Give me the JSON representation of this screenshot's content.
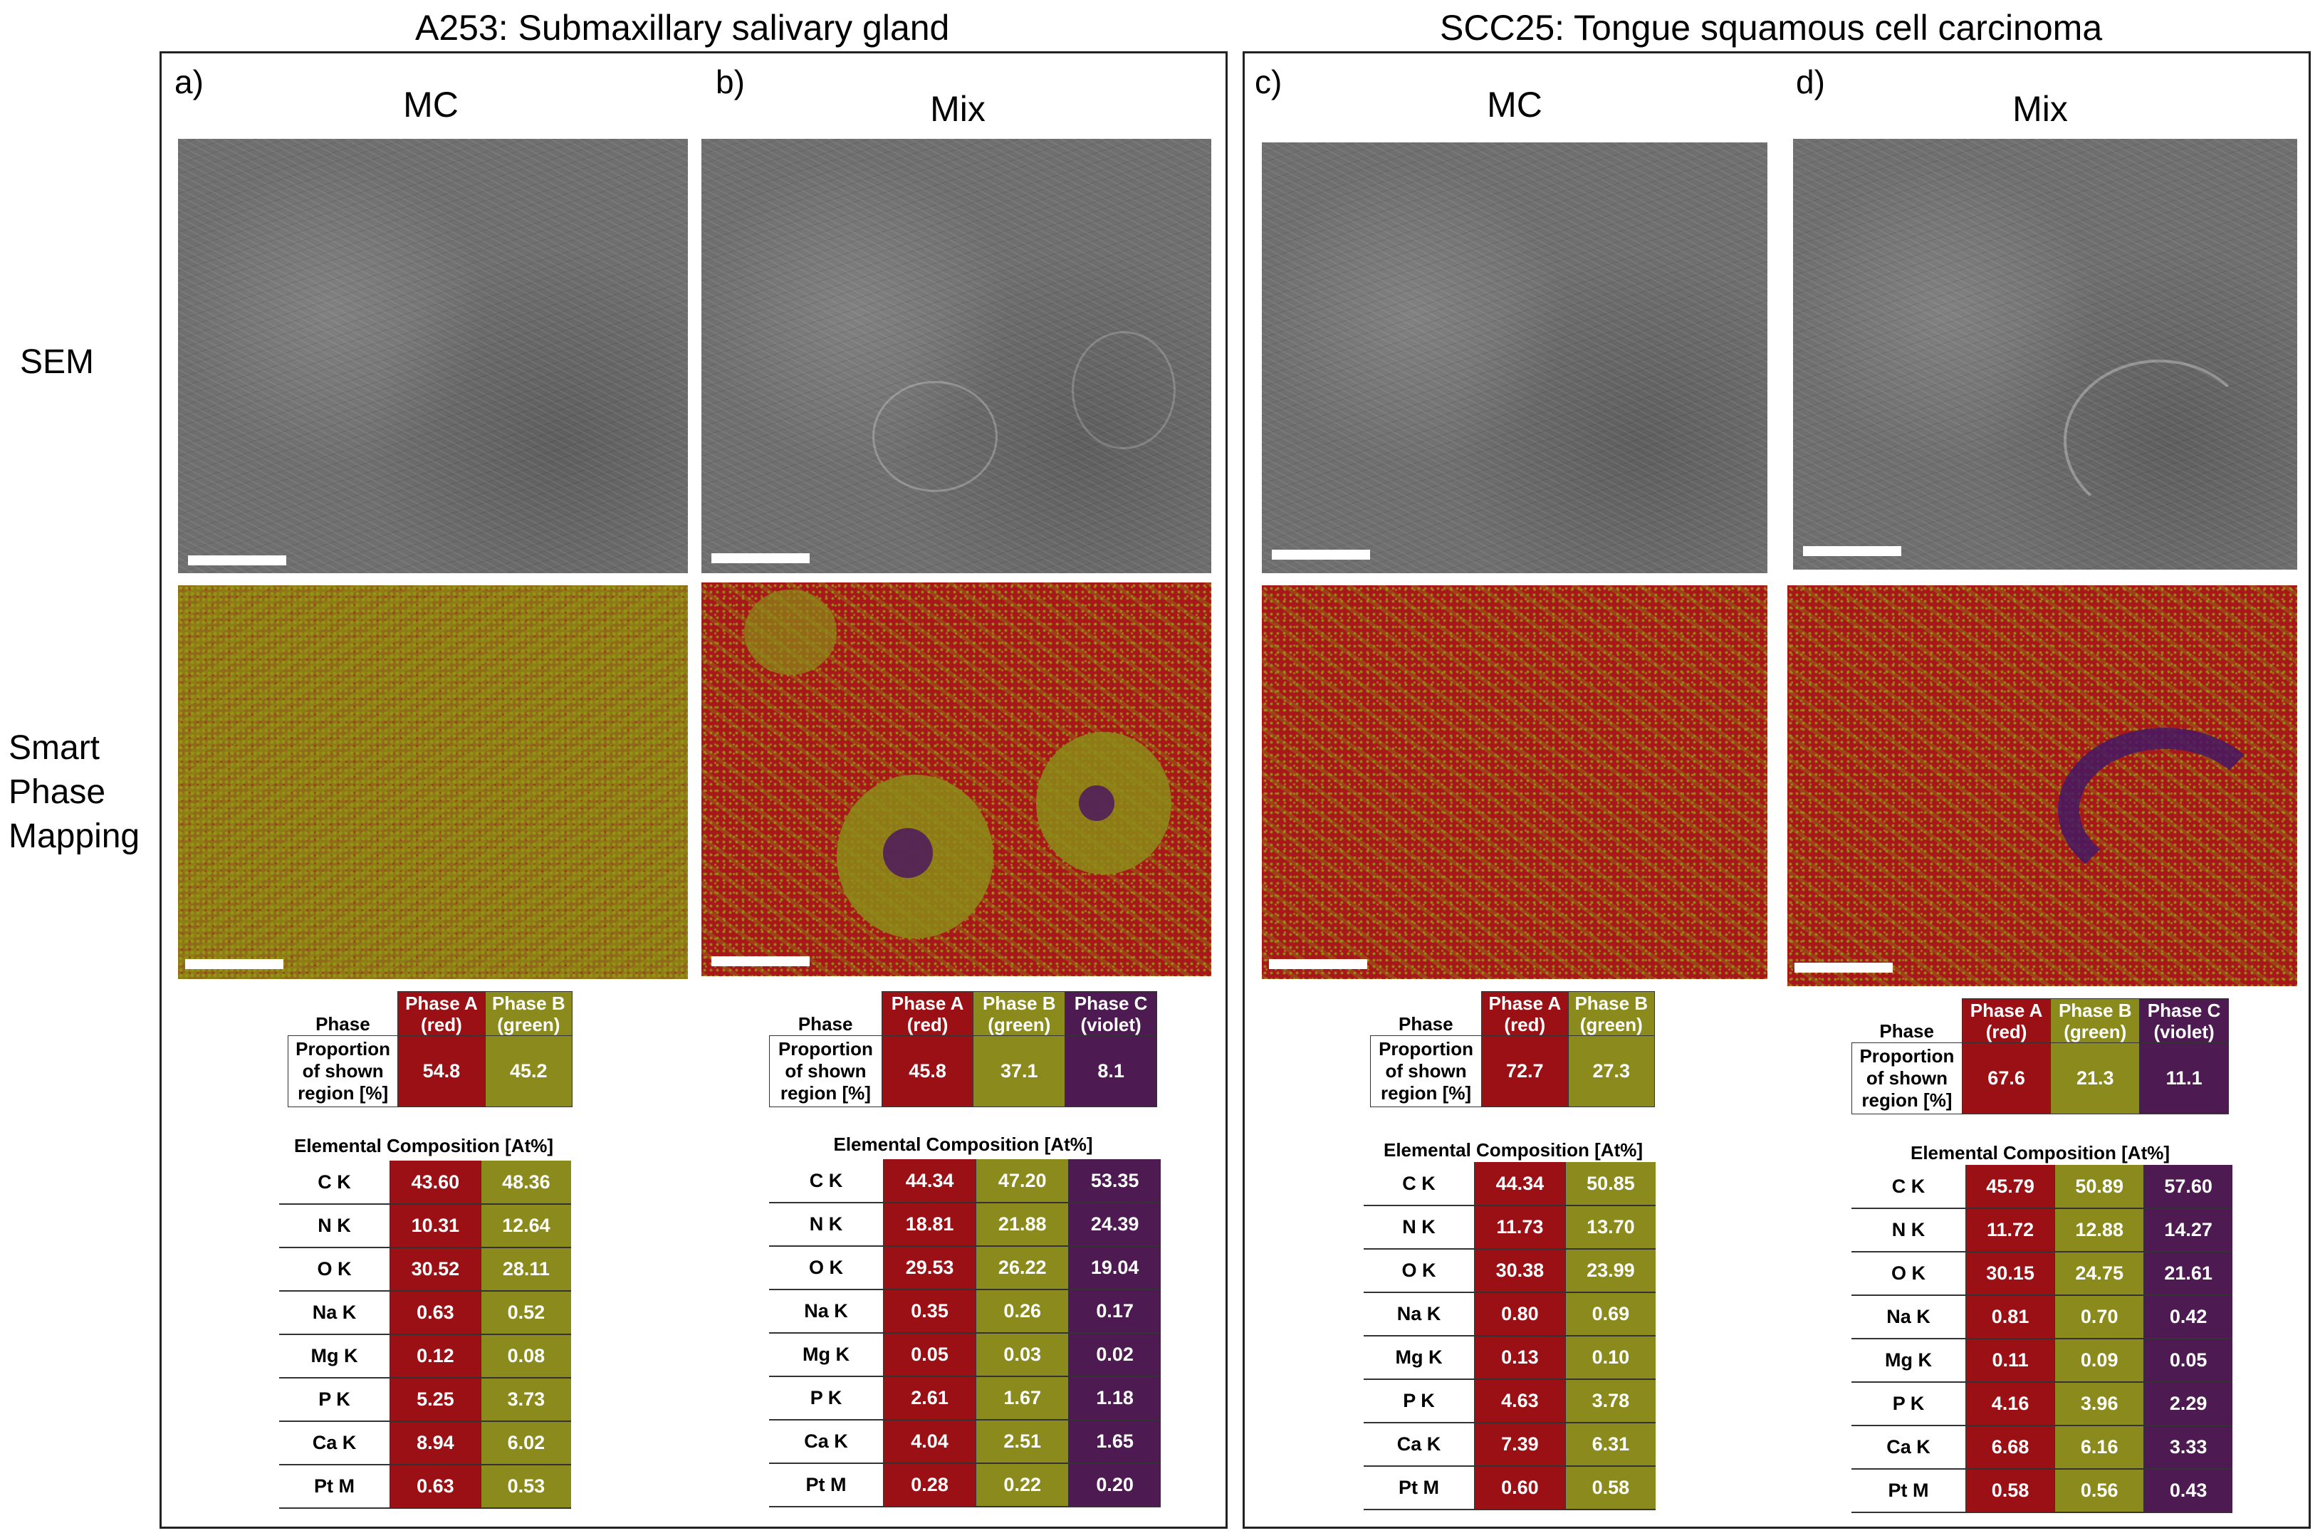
{
  "groups": [
    {
      "title": "A253: Submaxillary salivary gland"
    },
    {
      "title": "SCC25: Tongue squamous cell carcinoma"
    }
  ],
  "row_labels": {
    "sem": "SEM",
    "spm_line1": "Smart",
    "spm_line2": "Phase",
    "spm_line3": "Mapping"
  },
  "phase_header": {
    "label": "Phase",
    "proportion_line1": "Proportion",
    "proportion_line2": "of shown",
    "proportion_line3": "region [%]",
    "a_line1": "Phase A",
    "a_line2": "(red)",
    "b_line1": "Phase B",
    "b_line2": "(green)",
    "c_line1": "Phase C",
    "c_line2": "(violet)"
  },
  "elements": [
    "C  K",
    "N  K",
    "O  K",
    "Na K",
    "Mg K",
    "P  K",
    "Ca K",
    "Pt M"
  ],
  "colors": {
    "phase_a": "#9b1014",
    "phase_b": "#8b8a1c",
    "phase_c": "#4d1a52"
  },
  "panels": [
    {
      "letter": "a)",
      "condition": "MC",
      "el_title": "Elemental Composition [At%]",
      "proportions": [
        "54.8",
        "45.2"
      ],
      "comp": [
        [
          "43.60",
          "48.36"
        ],
        [
          "10.31",
          "12.64"
        ],
        [
          "30.52",
          "28.11"
        ],
        [
          "0.63",
          "0.52"
        ],
        [
          "0.12",
          "0.08"
        ],
        [
          "5.25",
          "3.73"
        ],
        [
          "8.94",
          "6.02"
        ],
        [
          "0.63",
          "0.53"
        ]
      ]
    },
    {
      "letter": "b)",
      "condition": "Mix",
      "el_title": "Elemental Composition  [At%]",
      "proportions": [
        "45.8",
        "37.1",
        "8.1"
      ],
      "comp": [
        [
          "44.34",
          "47.20",
          "53.35"
        ],
        [
          "18.81",
          "21.88",
          "24.39"
        ],
        [
          "29.53",
          "26.22",
          "19.04"
        ],
        [
          "0.35",
          "0.26",
          "0.17"
        ],
        [
          "0.05",
          "0.03",
          "0.02"
        ],
        [
          "2.61",
          "1.67",
          "1.18"
        ],
        [
          "4.04",
          "2.51",
          "1.65"
        ],
        [
          "0.28",
          "0.22",
          "0.20"
        ]
      ]
    },
    {
      "letter": "c)",
      "condition": "MC",
      "el_title": "Elemental Composition [At%]",
      "proportions": [
        "72.7",
        "27.3"
      ],
      "comp": [
        [
          "44.34",
          "50.85"
        ],
        [
          "11.73",
          "13.70"
        ],
        [
          "30.38",
          "23.99"
        ],
        [
          "0.80",
          "0.69"
        ],
        [
          "0.13",
          "0.10"
        ],
        [
          "4.63",
          "3.78"
        ],
        [
          "7.39",
          "6.31"
        ],
        [
          "0.60",
          "0.58"
        ]
      ]
    },
    {
      "letter": "d)",
      "condition": "Mix",
      "el_title": "Elemental Composition [At%]",
      "proportions": [
        "67.6",
        "21.3",
        "11.1"
      ],
      "comp": [
        [
          "45.79",
          "50.89",
          "57.60"
        ],
        [
          "11.72",
          "12.88",
          "14.27"
        ],
        [
          "30.15",
          "24.75",
          "21.61"
        ],
        [
          "0.81",
          "0.70",
          "0.42"
        ],
        [
          "0.11",
          "0.09",
          "0.05"
        ],
        [
          "4.16",
          "3.96",
          "2.29"
        ],
        [
          "6.68",
          "6.16",
          "3.33"
        ],
        [
          "0.58",
          "0.56",
          "0.43"
        ]
      ]
    }
  ]
}
